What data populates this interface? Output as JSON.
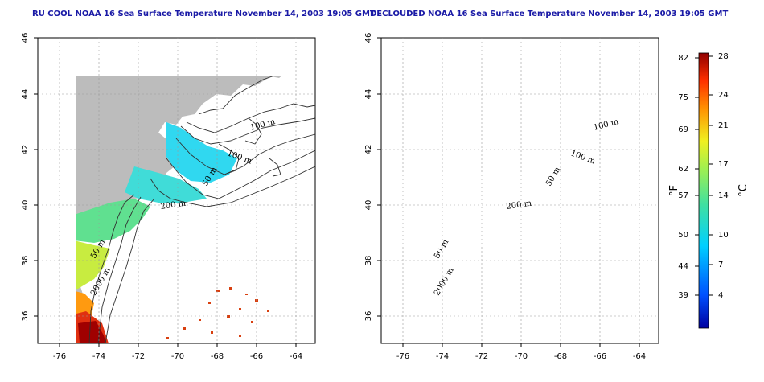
{
  "left_panel": {
    "title": "RU COOL NOAA 16 Sea Surface Temperature November 14, 2003 19:05 GMT",
    "contour_labels": [
      "100 m",
      "100 m",
      "50 m",
      "200 m",
      "50 m",
      "2000 m"
    ]
  },
  "right_panel": {
    "title": "DECLOUDED NOAA 16 Sea Surface Temperature November 14, 2003 19:05 GMT",
    "contour_labels": [
      "100 m",
      "100 m",
      "50 m",
      "200 m",
      "50 m",
      "2000 m"
    ]
  },
  "axes": {
    "x_ticks": [
      "-76",
      "-74",
      "-72",
      "-70",
      "-68",
      "-66",
      "-64"
    ],
    "y_ticks": [
      "46",
      "44",
      "42",
      "40",
      "38",
      "36"
    ]
  },
  "colorbar": {
    "fahrenheit_ticks": [
      "82",
      "75",
      "69",
      "62",
      "57",
      "50",
      "44",
      "39"
    ],
    "celsius_ticks": [
      "28",
      "24",
      "21",
      "17",
      "14",
      "10",
      "7",
      "4"
    ],
    "fahrenheit_unit": "°F",
    "celsius_unit": "°C"
  }
}
